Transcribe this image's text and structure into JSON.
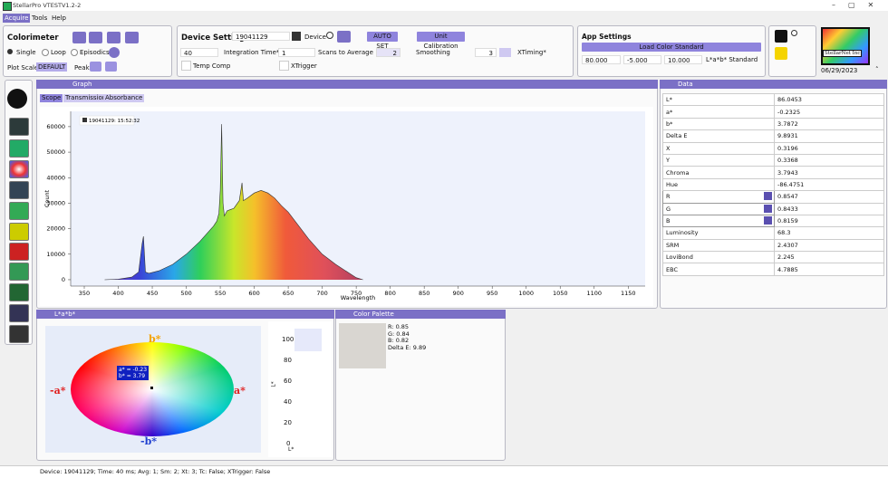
{
  "window": {
    "title": "StellarPro VTESTV1.2-2"
  },
  "menu": [
    "Acquire",
    "Tools",
    "Help"
  ],
  "colorimeter": {
    "title": "Colorimeter",
    "modes": [
      "Single",
      "Loop",
      "Episodics"
    ],
    "plot_scale_label": "Plot Scale",
    "plot_scale": "DEFAULT",
    "peak_label": "Peak"
  },
  "device_settings": {
    "title": "Device Settings",
    "device_id": "19041129",
    "device_label": "Device",
    "auto_set": "AUTO SET",
    "unit_calibration": "Unit Calibration",
    "integration_time": "40",
    "integration_time_label": "Integration Time*",
    "scans": "1",
    "scans_label": "Scans to Average",
    "smoothing": "2",
    "smoothing_label": "Smoothing",
    "xtiming": "3",
    "xtiming_label": "XTiming*",
    "temp_comp": "Temp Comp",
    "xtrigger": "XTrigger"
  },
  "app_settings": {
    "title": "App Settings",
    "load_button": "Load Color Standard",
    "standard": [
      "80.000",
      "-5.000",
      "10.000"
    ],
    "standard_label": "L*a*b* Standard"
  },
  "logo": "StellarNet Inc",
  "date": "06/29/2023",
  "graph_panel": {
    "title": "Graph",
    "tabs": [
      "Scope",
      "Transmission",
      "Absorbance"
    ]
  },
  "chart_data": {
    "type": "line",
    "xlabel": "Wavelength",
    "ylabel": "Count",
    "x": [
      380,
      400,
      420,
      430,
      435,
      437,
      440,
      445,
      460,
      480,
      500,
      520,
      540,
      545,
      548,
      550,
      552,
      554,
      556,
      560,
      570,
      578,
      582,
      584,
      590,
      600,
      610,
      620,
      630,
      640,
      650,
      660,
      680,
      700,
      720,
      740,
      750,
      760
    ],
    "series": [
      {
        "name": "19041129:  15:52:32",
        "color": "#333333",
        "values": [
          0,
          200,
          1000,
          3000,
          14000,
          17000,
          3000,
          2500,
          3500,
          6000,
          10000,
          15000,
          21000,
          23000,
          26000,
          35000,
          61000,
          30000,
          25000,
          27000,
          28000,
          31000,
          38000,
          31000,
          32000,
          34000,
          35000,
          34000,
          32000,
          29000,
          26500,
          23000,
          16000,
          10000,
          6000,
          2500,
          800,
          0
        ]
      }
    ],
    "xlim": [
      330,
      1175
    ],
    "ylim": [
      -2500,
      66000
    ],
    "xticks": [
      350,
      400,
      450,
      500,
      550,
      600,
      650,
      700,
      750,
      800,
      850,
      900,
      950,
      1000,
      1050,
      1100,
      1150
    ],
    "yticks": [
      0,
      10000,
      20000,
      30000,
      40000,
      50000,
      60000
    ]
  },
  "data_panel": {
    "title": "Data",
    "rows": [
      [
        "L*",
        "86.0453"
      ],
      [
        "a*",
        "-0.2325"
      ],
      [
        "b*",
        "3.7872"
      ],
      [
        "Delta E",
        "9.8931"
      ],
      [
        "X",
        "0.3196"
      ],
      [
        "Y",
        "0.3368"
      ],
      [
        "Chroma",
        "3.7943"
      ],
      [
        "Hue",
        "-86.4751"
      ],
      [
        "R",
        "0.8547"
      ],
      [
        "G",
        "0.8433"
      ],
      [
        "B",
        "0.8159"
      ],
      [
        "Luminosity",
        "68.3"
      ],
      [
        "SRM",
        "2.4307"
      ],
      [
        "LoviBond",
        "2.245"
      ],
      [
        "EBC",
        "4.7885"
      ]
    ]
  },
  "lab_panel": {
    "title": "L*a*b*",
    "axes": [
      "b*",
      "-a*",
      "a*",
      "-b*"
    ],
    "tooltip": [
      "a* = -0.23",
      "b* = 3.79"
    ],
    "lstar_ticks": [
      "100",
      "80",
      "60",
      "40",
      "20",
      "0"
    ],
    "lstar_axis": "L*",
    "lstar_label": "L*"
  },
  "palette": {
    "title": "Color Palette",
    "lines": [
      "R: 0.85",
      "G: 0.84",
      "B: 0.82",
      "Delta E: 9.89"
    ]
  },
  "status": "Device: 19041129; Time: 40 ms; Avg: 1; Sm: 2; Xt: 3; Tc: False; XTrigger: False"
}
